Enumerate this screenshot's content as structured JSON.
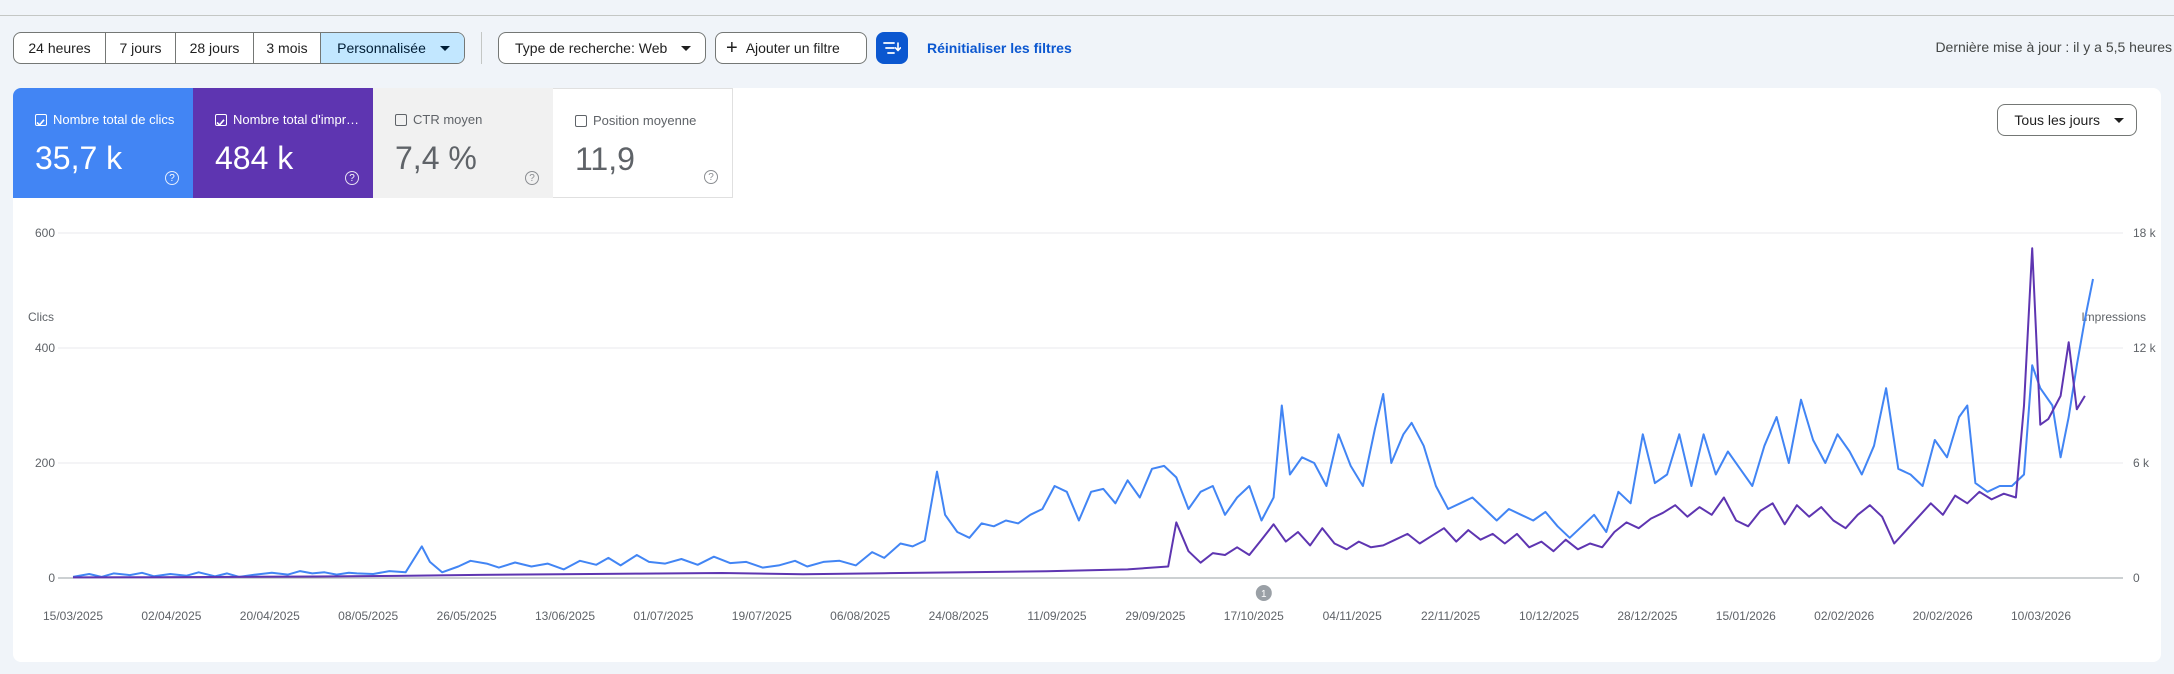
{
  "toolbar": {
    "ranges": [
      "24 heures",
      "7 jours",
      "28 jours",
      "3 mois",
      "Personnalisée"
    ],
    "active_range": "Personnalisée",
    "search_type": "Type de recherche: Web",
    "add_filter": "Ajouter un filtre",
    "reset": "Réinitialiser les filtres",
    "last_update": "Dernière mise à jour : il y a 5,5 heures"
  },
  "metrics": {
    "clicks": {
      "label": "Nombre total de clics",
      "value": "35,7 k",
      "checked": true,
      "color": "#4285f4"
    },
    "impressions": {
      "label": "Nombre total d'impressions",
      "value": "484 k",
      "checked": true,
      "color": "#5e35b1"
    },
    "ctr": {
      "label": "CTR moyen",
      "value": "7,4 %",
      "checked": false
    },
    "position": {
      "label": "Position moyenne",
      "value": "11,9",
      "checked": false
    }
  },
  "days_select": "Tous les jours",
  "chart_data": {
    "type": "line",
    "left_axis_label": "Clics",
    "right_axis_label": "Impressions",
    "left_ticks": [
      "0",
      "200",
      "400",
      "600"
    ],
    "right_ticks": [
      "0",
      "6 k",
      "12 k",
      "18 k"
    ],
    "ylim_left": [
      0,
      600
    ],
    "ylim_right": [
      0,
      18000
    ],
    "x_ticks": [
      "15/03/2025",
      "02/04/2025",
      "20/04/2025",
      "08/05/2025",
      "26/05/2025",
      "13/06/2025",
      "01/07/2025",
      "19/07/2025",
      "06/08/2025",
      "24/08/2025",
      "11/09/2025",
      "29/09/2025",
      "17/10/2025",
      "04/11/2025",
      "22/11/2025",
      "10/12/2025",
      "28/12/2025",
      "15/01/2026",
      "02/02/2026",
      "20/02/2026",
      "10/03/2026"
    ],
    "annotation": {
      "label": "1",
      "date": "17/10/2025"
    },
    "grid": true,
    "series": [
      {
        "name": "Clics",
        "color": "#4285f4",
        "axis": "left",
        "values": [
          [
            0,
            2
          ],
          [
            8,
            7
          ],
          [
            14,
            2
          ],
          [
            20,
            8
          ],
          [
            28,
            5
          ],
          [
            34,
            9
          ],
          [
            40,
            3
          ],
          [
            48,
            7
          ],
          [
            56,
            4
          ],
          [
            62,
            10
          ],
          [
            70,
            3
          ],
          [
            76,
            8
          ],
          [
            82,
            2
          ],
          [
            90,
            6
          ],
          [
            98,
            9
          ],
          [
            106,
            6
          ],
          [
            112,
            12
          ],
          [
            118,
            8
          ],
          [
            124,
            10
          ],
          [
            130,
            6
          ],
          [
            136,
            9
          ],
          [
            140,
            8
          ],
          [
            148,
            7
          ],
          [
            156,
            12
          ],
          [
            164,
            10
          ],
          [
            172,
            55
          ],
          [
            176,
            28
          ],
          [
            182,
            10
          ],
          [
            190,
            20
          ],
          [
            196,
            30
          ],
          [
            204,
            25
          ],
          [
            210,
            18
          ],
          [
            218,
            27
          ],
          [
            226,
            20
          ],
          [
            234,
            25
          ],
          [
            242,
            15
          ],
          [
            250,
            30
          ],
          [
            258,
            23
          ],
          [
            264,
            35
          ],
          [
            270,
            22
          ],
          [
            278,
            40
          ],
          [
            284,
            28
          ],
          [
            292,
            25
          ],
          [
            300,
            33
          ],
          [
            308,
            23
          ],
          [
            316,
            37
          ],
          [
            324,
            26
          ],
          [
            332,
            28
          ],
          [
            340,
            18
          ],
          [
            348,
            22
          ],
          [
            356,
            30
          ],
          [
            362,
            20
          ],
          [
            370,
            28
          ],
          [
            378,
            30
          ],
          [
            386,
            22
          ],
          [
            394,
            45
          ],
          [
            400,
            35
          ],
          [
            408,
            60
          ],
          [
            414,
            55
          ],
          [
            420,
            65
          ],
          [
            426,
            185
          ],
          [
            430,
            110
          ],
          [
            436,
            80
          ],
          [
            442,
            70
          ],
          [
            448,
            95
          ],
          [
            454,
            90
          ],
          [
            460,
            100
          ],
          [
            466,
            95
          ],
          [
            472,
            110
          ],
          [
            478,
            120
          ],
          [
            484,
            160
          ],
          [
            490,
            150
          ],
          [
            496,
            100
          ],
          [
            502,
            150
          ],
          [
            508,
            155
          ],
          [
            514,
            130
          ],
          [
            520,
            170
          ],
          [
            526,
            140
          ],
          [
            532,
            190
          ],
          [
            538,
            195
          ],
          [
            544,
            175
          ],
          [
            550,
            120
          ],
          [
            556,
            150
          ],
          [
            562,
            160
          ],
          [
            568,
            110
          ],
          [
            574,
            140
          ],
          [
            580,
            160
          ],
          [
            586,
            100
          ],
          [
            592,
            140
          ],
          [
            596,
            300
          ],
          [
            600,
            180
          ],
          [
            606,
            210
          ],
          [
            612,
            200
          ],
          [
            618,
            160
          ],
          [
            624,
            250
          ],
          [
            630,
            195
          ],
          [
            636,
            160
          ],
          [
            642,
            260
          ],
          [
            646,
            320
          ],
          [
            650,
            200
          ],
          [
            656,
            250
          ],
          [
            660,
            270
          ],
          [
            666,
            230
          ],
          [
            672,
            160
          ],
          [
            678,
            120
          ],
          [
            684,
            130
          ],
          [
            690,
            140
          ],
          [
            696,
            120
          ],
          [
            702,
            100
          ],
          [
            708,
            120
          ],
          [
            714,
            110
          ],
          [
            720,
            100
          ],
          [
            726,
            115
          ],
          [
            732,
            90
          ],
          [
            738,
            70
          ],
          [
            744,
            90
          ],
          [
            750,
            110
          ],
          [
            756,
            80
          ],
          [
            762,
            150
          ],
          [
            768,
            130
          ],
          [
            774,
            250
          ],
          [
            780,
            165
          ],
          [
            786,
            180
          ],
          [
            792,
            250
          ],
          [
            798,
            160
          ],
          [
            804,
            250
          ],
          [
            810,
            180
          ],
          [
            816,
            220
          ],
          [
            822,
            190
          ],
          [
            828,
            160
          ],
          [
            834,
            230
          ],
          [
            840,
            280
          ],
          [
            846,
            200
          ],
          [
            852,
            310
          ],
          [
            858,
            240
          ],
          [
            864,
            200
          ],
          [
            870,
            250
          ],
          [
            876,
            220
          ],
          [
            882,
            180
          ],
          [
            888,
            230
          ],
          [
            894,
            330
          ],
          [
            900,
            190
          ],
          [
            906,
            180
          ],
          [
            912,
            160
          ],
          [
            918,
            240
          ],
          [
            924,
            210
          ],
          [
            930,
            280
          ],
          [
            934,
            300
          ],
          [
            938,
            165
          ],
          [
            944,
            150
          ],
          [
            950,
            160
          ],
          [
            956,
            160
          ],
          [
            962,
            180
          ],
          [
            966,
            370
          ],
          [
            970,
            330
          ],
          [
            976,
            300
          ],
          [
            980,
            210
          ],
          [
            984,
            280
          ],
          [
            988,
            370
          ],
          [
            992,
            450
          ],
          [
            996,
            520
          ]
        ]
      },
      {
        "name": "Impressions",
        "color": "#5e35b1",
        "axis": "right",
        "values": [
          [
            0,
            30
          ],
          [
            40,
            40
          ],
          [
            80,
            60
          ],
          [
            120,
            80
          ],
          [
            160,
            110
          ],
          [
            200,
            160
          ],
          [
            240,
            200
          ],
          [
            280,
            230
          ],
          [
            320,
            260
          ],
          [
            360,
            200
          ],
          [
            400,
            250
          ],
          [
            440,
            300
          ],
          [
            480,
            350
          ],
          [
            520,
            450
          ],
          [
            540,
            600
          ],
          [
            544,
            2900
          ],
          [
            550,
            1400
          ],
          [
            556,
            800
          ],
          [
            562,
            1300
          ],
          [
            568,
            1200
          ],
          [
            574,
            1600
          ],
          [
            580,
            1200
          ],
          [
            586,
            2000
          ],
          [
            592,
            2800
          ],
          [
            598,
            1900
          ],
          [
            604,
            2400
          ],
          [
            610,
            1700
          ],
          [
            616,
            2600
          ],
          [
            622,
            1800
          ],
          [
            628,
            1500
          ],
          [
            634,
            1900
          ],
          [
            640,
            1600
          ],
          [
            646,
            1700
          ],
          [
            652,
            2000
          ],
          [
            658,
            2300
          ],
          [
            664,
            1800
          ],
          [
            670,
            2200
          ],
          [
            676,
            2600
          ],
          [
            682,
            1900
          ],
          [
            688,
            2500
          ],
          [
            694,
            2000
          ],
          [
            700,
            2300
          ],
          [
            706,
            1800
          ],
          [
            712,
            2300
          ],
          [
            718,
            1600
          ],
          [
            724,
            1900
          ],
          [
            730,
            1400
          ],
          [
            736,
            2000
          ],
          [
            742,
            1500
          ],
          [
            748,
            1800
          ],
          [
            754,
            1600
          ],
          [
            760,
            2400
          ],
          [
            766,
            2900
          ],
          [
            772,
            2600
          ],
          [
            778,
            3100
          ],
          [
            784,
            3400
          ],
          [
            790,
            3800
          ],
          [
            796,
            3200
          ],
          [
            802,
            3700
          ],
          [
            808,
            3300
          ],
          [
            814,
            4200
          ],
          [
            820,
            3000
          ],
          [
            826,
            2700
          ],
          [
            832,
            3500
          ],
          [
            838,
            3900
          ],
          [
            844,
            2800
          ],
          [
            850,
            3800
          ],
          [
            856,
            3200
          ],
          [
            862,
            3700
          ],
          [
            868,
            3000
          ],
          [
            874,
            2600
          ],
          [
            880,
            3300
          ],
          [
            886,
            3800
          ],
          [
            892,
            3200
          ],
          [
            898,
            1800
          ],
          [
            904,
            2500
          ],
          [
            910,
            3200
          ],
          [
            916,
            3900
          ],
          [
            922,
            3300
          ],
          [
            928,
            4300
          ],
          [
            934,
            3900
          ],
          [
            940,
            4500
          ],
          [
            946,
            4100
          ],
          [
            952,
            4400
          ],
          [
            958,
            4200
          ],
          [
            962,
            9000
          ],
          [
            966,
            17200
          ],
          [
            970,
            8000
          ],
          [
            974,
            8300
          ],
          [
            980,
            9500
          ],
          [
            984,
            12300
          ],
          [
            988,
            8800
          ],
          [
            992,
            9500
          ]
        ]
      }
    ]
  }
}
